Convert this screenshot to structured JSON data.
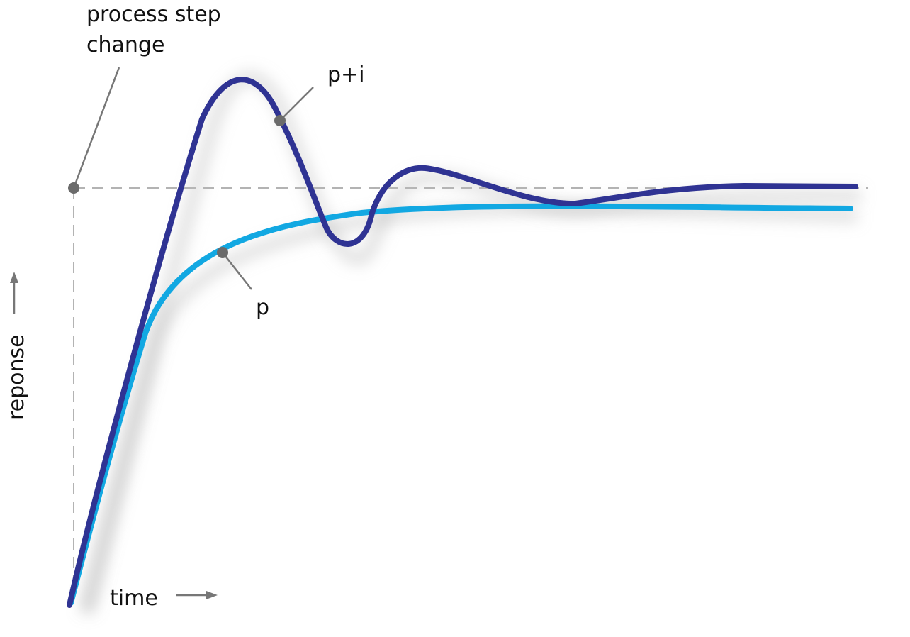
{
  "labels": {
    "process_step_line1": "process step",
    "process_step_line2": "change",
    "p_plus_i": "p+i",
    "p": "p",
    "time": "time",
    "response": "reponse"
  },
  "colors": {
    "p_curve": "#12a8e2",
    "pi_curve": "#2f3393",
    "guide": "#b3b3b3",
    "marker": "#6b6b6b"
  }
}
